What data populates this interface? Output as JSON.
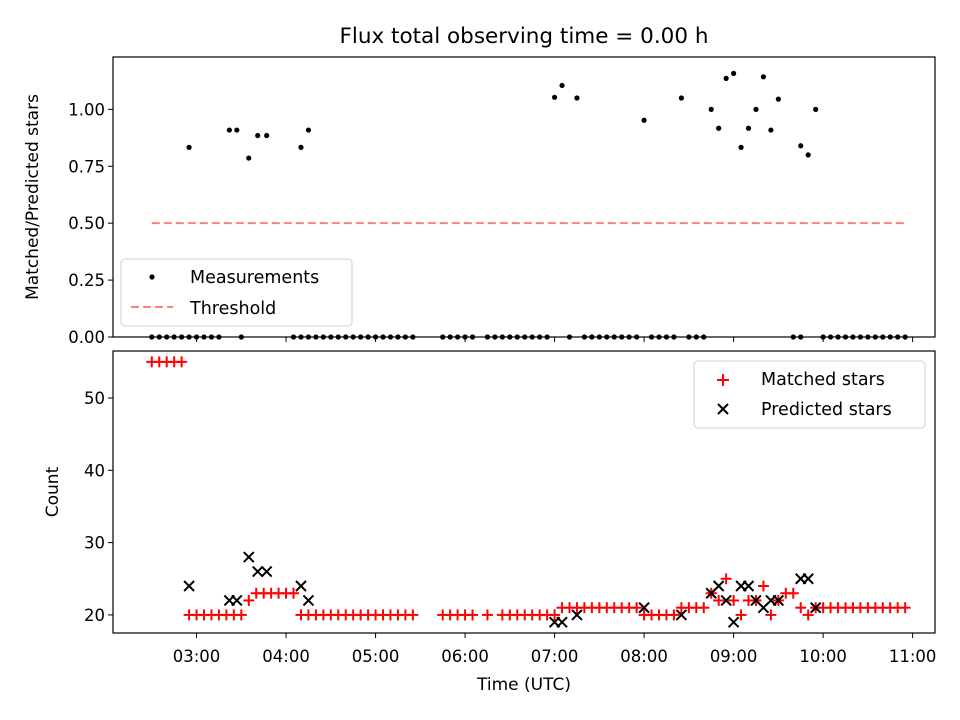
{
  "title": "Flux total observing time = 0.00 h",
  "chart_data": [
    {
      "type": "scatter",
      "panel": "top",
      "xlabel": "",
      "ylabel": "Matched/Predicted stars",
      "xlim": [
        "02:04",
        "11:15"
      ],
      "ylim": [
        0,
        1.23
      ],
      "yticks": [
        0.0,
        0.25,
        0.5,
        0.75,
        1.0
      ],
      "ytick_labels": [
        "0.00",
        "0.25",
        "0.50",
        "0.75",
        "1.00"
      ],
      "grid": false,
      "legend_position": "lower-left",
      "colors": {
        "measurements": "#000000",
        "threshold": "#ff7f7f"
      },
      "series": [
        {
          "name": "Measurements",
          "kind": "scatter",
          "points": [
            [
              "02:55",
              0.833
            ],
            [
              "03:22",
              0.909
            ],
            [
              "03:27",
              0.909
            ],
            [
              "03:35",
              0.786
            ],
            [
              "03:41",
              0.885
            ],
            [
              "03:47",
              0.885
            ],
            [
              "04:10",
              0.833
            ],
            [
              "04:15",
              0.909
            ],
            [
              "07:00",
              1.053
            ],
            [
              "07:05",
              1.105
            ],
            [
              "07:15",
              1.05
            ],
            [
              "08:00",
              0.952
            ],
            [
              "08:25",
              1.05
            ],
            [
              "08:45",
              1.0
            ],
            [
              "08:50",
              0.917
            ],
            [
              "08:55",
              1.136
            ],
            [
              "09:00",
              1.158
            ],
            [
              "09:05",
              0.833
            ],
            [
              "09:10",
              0.917
            ],
            [
              "09:15",
              1.0
            ],
            [
              "09:20",
              1.143
            ],
            [
              "09:25",
              0.909
            ],
            [
              "09:30",
              1.045
            ],
            [
              "09:45",
              0.84
            ],
            [
              "09:50",
              0.8
            ],
            [
              "09:55",
              1.0
            ]
          ],
          "zero_times": [
            "02:30",
            "02:35",
            "02:40",
            "02:45",
            "02:50",
            "02:55",
            "03:00",
            "03:05",
            "03:10",
            "03:15",
            "03:30",
            "04:05",
            "04:10",
            "04:15",
            "04:20",
            "04:25",
            "04:30",
            "04:35",
            "04:40",
            "04:45",
            "04:50",
            "04:55",
            "05:00",
            "05:05",
            "05:10",
            "05:15",
            "05:20",
            "05:25",
            "05:45",
            "05:50",
            "05:55",
            "06:00",
            "06:05",
            "06:15",
            "06:20",
            "06:25",
            "06:30",
            "06:35",
            "06:40",
            "06:45",
            "06:50",
            "06:55",
            "07:10",
            "07:20",
            "07:25",
            "07:30",
            "07:35",
            "07:40",
            "07:45",
            "07:50",
            "07:55",
            "08:05",
            "08:10",
            "08:15",
            "08:20",
            "08:30",
            "08:35",
            "08:40",
            "09:40",
            "09:45",
            "10:00",
            "10:05",
            "10:10",
            "10:15",
            "10:20",
            "10:25",
            "10:30",
            "10:35",
            "10:40",
            "10:45",
            "10:50",
            "10:55"
          ]
        },
        {
          "name": "Threshold",
          "kind": "line",
          "style": "dashed",
          "x": [
            "02:30",
            "10:55"
          ],
          "y": [
            0.5,
            0.5
          ]
        }
      ]
    },
    {
      "type": "scatter",
      "panel": "bottom",
      "xlabel": "Time (UTC)",
      "ylabel": "Count",
      "xlim": [
        "02:04",
        "11:15"
      ],
      "ylim": [
        17.5,
        56.5
      ],
      "yticks": [
        20,
        30,
        40,
        50
      ],
      "ytick_labels": [
        "20",
        "30",
        "40",
        "50"
      ],
      "xticks": [
        "03:00",
        "04:00",
        "05:00",
        "06:00",
        "07:00",
        "08:00",
        "09:00",
        "10:00",
        "11:00"
      ],
      "grid": false,
      "legend_position": "upper-right",
      "colors": {
        "matched": "#ff0000",
        "predicted": "#000000"
      },
      "series": [
        {
          "name": "Matched stars",
          "marker": "plus",
          "points": [
            [
              "02:30",
              55
            ],
            [
              "02:35",
              55
            ],
            [
              "02:40",
              55
            ],
            [
              "02:45",
              55
            ],
            [
              "02:50",
              55
            ],
            [
              "02:55",
              20
            ],
            [
              "03:00",
              20
            ],
            [
              "03:05",
              20
            ],
            [
              "03:10",
              20
            ],
            [
              "03:15",
              20
            ],
            [
              "03:20",
              20
            ],
            [
              "03:25",
              20
            ],
            [
              "03:30",
              20
            ],
            [
              "03:35",
              22
            ],
            [
              "03:40",
              23
            ],
            [
              "03:45",
              23
            ],
            [
              "03:50",
              23
            ],
            [
              "03:55",
              23
            ],
            [
              "04:00",
              23
            ],
            [
              "04:05",
              23
            ],
            [
              "04:10",
              20
            ],
            [
              "04:15",
              20
            ],
            [
              "04:20",
              20
            ],
            [
              "04:25",
              20
            ],
            [
              "04:30",
              20
            ],
            [
              "04:35",
              20
            ],
            [
              "04:40",
              20
            ],
            [
              "04:45",
              20
            ],
            [
              "04:50",
              20
            ],
            [
              "04:55",
              20
            ],
            [
              "05:00",
              20
            ],
            [
              "05:05",
              20
            ],
            [
              "05:10",
              20
            ],
            [
              "05:15",
              20
            ],
            [
              "05:20",
              20
            ],
            [
              "05:25",
              20
            ],
            [
              "05:45",
              20
            ],
            [
              "05:50",
              20
            ],
            [
              "05:55",
              20
            ],
            [
              "06:00",
              20
            ],
            [
              "06:05",
              20
            ],
            [
              "06:15",
              20
            ],
            [
              "06:25",
              20
            ],
            [
              "06:30",
              20
            ],
            [
              "06:35",
              20
            ],
            [
              "06:40",
              20
            ],
            [
              "06:45",
              20
            ],
            [
              "06:50",
              20
            ],
            [
              "06:55",
              20
            ],
            [
              "07:00",
              20
            ],
            [
              "07:05",
              21
            ],
            [
              "07:10",
              21
            ],
            [
              "07:15",
              21
            ],
            [
              "07:20",
              21
            ],
            [
              "07:25",
              21
            ],
            [
              "07:30",
              21
            ],
            [
              "07:35",
              21
            ],
            [
              "07:40",
              21
            ],
            [
              "07:45",
              21
            ],
            [
              "07:50",
              21
            ],
            [
              "07:55",
              21
            ],
            [
              "08:00",
              20
            ],
            [
              "08:05",
              20
            ],
            [
              "08:10",
              20
            ],
            [
              "08:15",
              20
            ],
            [
              "08:20",
              20
            ],
            [
              "08:25",
              21
            ],
            [
              "08:30",
              21
            ],
            [
              "08:35",
              21
            ],
            [
              "08:40",
              21
            ],
            [
              "08:45",
              23
            ],
            [
              "08:50",
              22
            ],
            [
              "08:55",
              25
            ],
            [
              "09:00",
              22
            ],
            [
              "09:05",
              20
            ],
            [
              "09:10",
              22
            ],
            [
              "09:15",
              22
            ],
            [
              "09:20",
              24
            ],
            [
              "09:25",
              20
            ],
            [
              "09:30",
              22
            ],
            [
              "09:35",
              23
            ],
            [
              "09:40",
              23
            ],
            [
              "09:45",
              21
            ],
            [
              "09:50",
              20
            ],
            [
              "09:55",
              21
            ],
            [
              "10:00",
              21
            ],
            [
              "10:05",
              21
            ],
            [
              "10:10",
              21
            ],
            [
              "10:15",
              21
            ],
            [
              "10:20",
              21
            ],
            [
              "10:25",
              21
            ],
            [
              "10:30",
              21
            ],
            [
              "10:35",
              21
            ],
            [
              "10:40",
              21
            ],
            [
              "10:45",
              21
            ],
            [
              "10:50",
              21
            ],
            [
              "10:55",
              21
            ]
          ]
        },
        {
          "name": "Predicted stars",
          "marker": "x",
          "points": [
            [
              "02:55",
              24
            ],
            [
              "03:22",
              22
            ],
            [
              "03:27",
              22
            ],
            [
              "03:35",
              28
            ],
            [
              "03:41",
              26
            ],
            [
              "03:47",
              26
            ],
            [
              "04:10",
              24
            ],
            [
              "04:15",
              22
            ],
            [
              "07:00",
              19
            ],
            [
              "07:05",
              19
            ],
            [
              "07:15",
              20
            ],
            [
              "08:00",
              21
            ],
            [
              "08:25",
              20
            ],
            [
              "08:45",
              23
            ],
            [
              "08:50",
              24
            ],
            [
              "08:55",
              22
            ],
            [
              "09:00",
              19
            ],
            [
              "09:05",
              24
            ],
            [
              "09:10",
              24
            ],
            [
              "09:15",
              22
            ],
            [
              "09:20",
              21
            ],
            [
              "09:25",
              22
            ],
            [
              "09:30",
              22
            ],
            [
              "09:45",
              25
            ],
            [
              "09:50",
              25
            ],
            [
              "09:55",
              21
            ]
          ]
        }
      ]
    }
  ]
}
